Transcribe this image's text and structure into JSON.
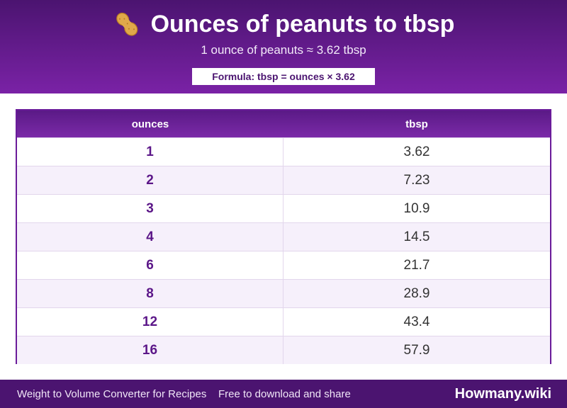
{
  "header": {
    "title": "Ounces of peanuts to tbsp",
    "subtitle": "1 ounce of peanuts ≈ 3.62 tbsp",
    "formula": "Formula: tbsp = ounces × 3.62",
    "icon": "peanut-icon"
  },
  "table": {
    "columns": [
      "ounces",
      "tbsp"
    ],
    "rows": [
      {
        "ounces": "1",
        "tbsp": "3.62"
      },
      {
        "ounces": "2",
        "tbsp": "7.23"
      },
      {
        "ounces": "3",
        "tbsp": "10.9"
      },
      {
        "ounces": "4",
        "tbsp": "14.5"
      },
      {
        "ounces": "6",
        "tbsp": "21.7"
      },
      {
        "ounces": "8",
        "tbsp": "28.9"
      },
      {
        "ounces": "12",
        "tbsp": "43.4"
      },
      {
        "ounces": "16",
        "tbsp": "57.9"
      }
    ]
  },
  "footer": {
    "left": "Weight to Volume Converter for Recipes",
    "middle": "Free to download and share",
    "brand": "Howmany.wiki"
  },
  "colors": {
    "primary": "#4b1470",
    "accent": "#7a22a6",
    "row_alt": "#f6f0fb"
  }
}
